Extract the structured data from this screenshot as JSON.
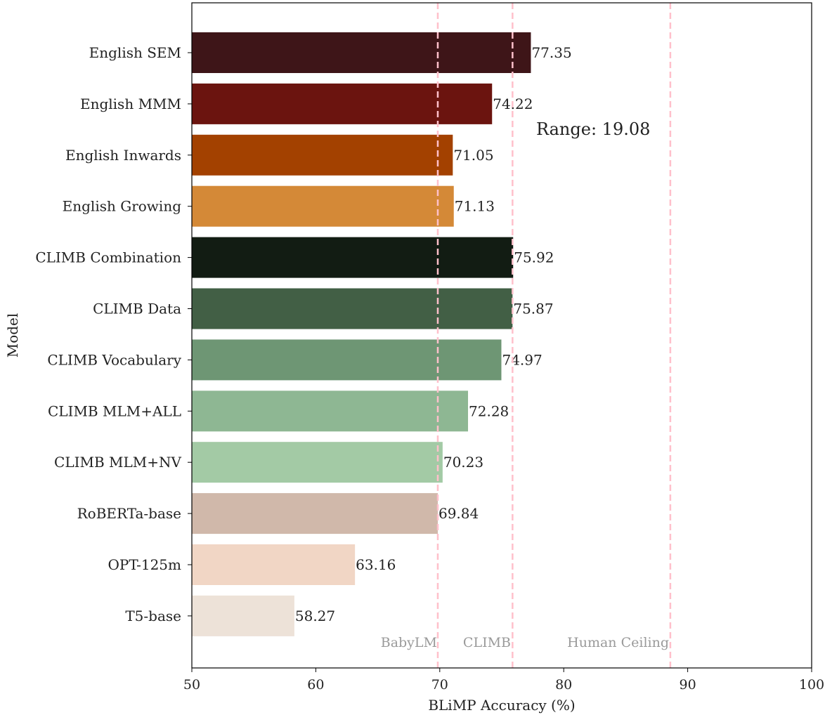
{
  "chart_data": {
    "type": "bar",
    "orientation": "horizontal",
    "xlabel": "BLiMP Accuracy (%)",
    "ylabel": "Model",
    "xlim": [
      50,
      100
    ],
    "xticks": [
      50,
      60,
      70,
      80,
      90,
      100
    ],
    "categories": [
      "English SEM",
      "English MMM",
      "English Inwards",
      "English Growing",
      "CLIMB Combination",
      "CLIMB Data",
      "CLIMB Vocabulary",
      "CLIMB MLM+ALL",
      "CLIMB MLM+NV",
      "RoBERTa-base",
      "OPT-125m",
      "T5-base"
    ],
    "values": [
      77.35,
      74.22,
      71.05,
      71.13,
      75.92,
      75.87,
      74.97,
      72.28,
      70.23,
      69.84,
      63.16,
      58.27
    ],
    "value_labels": [
      "77.35",
      "74.22",
      "71.05",
      "71.13",
      "75.92",
      "75.87",
      "74.97",
      "72.28",
      "70.23",
      "69.84",
      "63.16",
      "58.27"
    ],
    "colors": [
      "#3e1518",
      "#6b140f",
      "#a34100",
      "#d48937",
      "#121c13",
      "#425f45",
      "#6e9674",
      "#8eb793",
      "#a3caa5",
      "#d0b8aa",
      "#f1d6c5",
      "#ede2d8"
    ],
    "reference_lines": [
      {
        "label": "BabyLM",
        "x": 69.84,
        "color": "#ffc0cb"
      },
      {
        "label": "CLIMB",
        "x": 75.87,
        "color": "#ffc0cb"
      },
      {
        "label": "Human Ceiling",
        "x": 88.6,
        "color": "#ffc0cb"
      }
    ],
    "annotation": "Range: 19.08",
    "grid": false,
    "legend": "none"
  }
}
